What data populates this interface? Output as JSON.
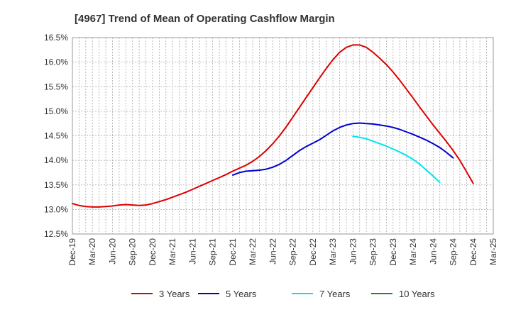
{
  "chart_data": {
    "type": "line",
    "title": "[4967]  Trend of Mean of Operating Cashflow Margin",
    "xlabel": "",
    "ylabel": "",
    "x_ticks": [
      "Dec-19",
      "Mar-20",
      "Jun-20",
      "Sep-20",
      "Dec-20",
      "Mar-21",
      "Jun-21",
      "Sep-21",
      "Dec-21",
      "Mar-22",
      "Jun-22",
      "Sep-22",
      "Dec-22",
      "Mar-23",
      "Jun-23",
      "Sep-23",
      "Dec-23",
      "Mar-24",
      "Jun-24",
      "Sep-24",
      "Dec-24",
      "Mar-25"
    ],
    "y_ticks": [
      "12.5%",
      "13.0%",
      "13.5%",
      "14.0%",
      "14.5%",
      "15.0%",
      "15.5%",
      "16.0%",
      "16.5%"
    ],
    "ylim": [
      12.5,
      16.5
    ],
    "grid": true,
    "legend_position": "bottom",
    "series": [
      {
        "name": "3 Years",
        "color": "#dd0000",
        "points": [
          [
            "Dec-19",
            13.12
          ],
          [
            "Jan-20",
            13.08
          ],
          [
            "Feb-20",
            13.06
          ],
          [
            "Mar-20",
            13.05
          ],
          [
            "Apr-20",
            13.05
          ],
          [
            "May-20",
            13.06
          ],
          [
            "Jun-20",
            13.07
          ],
          [
            "Jul-20",
            13.09
          ],
          [
            "Aug-20",
            13.1
          ],
          [
            "Sep-20",
            13.09
          ],
          [
            "Oct-20",
            13.08
          ],
          [
            "Nov-20",
            13.09
          ],
          [
            "Dec-20",
            13.12
          ],
          [
            "Jan-21",
            13.16
          ],
          [
            "Feb-21",
            13.2
          ],
          [
            "Mar-21",
            13.25
          ],
          [
            "Apr-21",
            13.3
          ],
          [
            "May-21",
            13.35
          ],
          [
            "Jun-21",
            13.41
          ],
          [
            "Jul-21",
            13.47
          ],
          [
            "Aug-21",
            13.53
          ],
          [
            "Sep-21",
            13.59
          ],
          [
            "Oct-21",
            13.65
          ],
          [
            "Nov-21",
            13.71
          ],
          [
            "Dec-21",
            13.78
          ],
          [
            "Jan-22",
            13.84
          ],
          [
            "Feb-22",
            13.9
          ],
          [
            "Mar-22",
            13.98
          ],
          [
            "Apr-22",
            14.08
          ],
          [
            "May-22",
            14.2
          ],
          [
            "Jun-22",
            14.34
          ],
          [
            "Jul-22",
            14.5
          ],
          [
            "Aug-22",
            14.68
          ],
          [
            "Sep-22",
            14.88
          ],
          [
            "Oct-22",
            15.08
          ],
          [
            "Nov-22",
            15.28
          ],
          [
            "Dec-22",
            15.48
          ],
          [
            "Jan-23",
            15.68
          ],
          [
            "Feb-23",
            15.87
          ],
          [
            "Mar-23",
            16.05
          ],
          [
            "Apr-23",
            16.2
          ],
          [
            "May-23",
            16.3
          ],
          [
            "Jun-23",
            16.35
          ],
          [
            "Jul-23",
            16.35
          ],
          [
            "Aug-23",
            16.3
          ],
          [
            "Sep-23",
            16.2
          ],
          [
            "Oct-23",
            16.08
          ],
          [
            "Nov-23",
            15.95
          ],
          [
            "Dec-23",
            15.8
          ],
          [
            "Jan-24",
            15.63
          ],
          [
            "Feb-24",
            15.45
          ],
          [
            "Mar-24",
            15.27
          ],
          [
            "Apr-24",
            15.08
          ],
          [
            "May-24",
            14.9
          ],
          [
            "Jun-24",
            14.72
          ],
          [
            "Jul-24",
            14.55
          ],
          [
            "Aug-24",
            14.38
          ],
          [
            "Sep-24",
            14.2
          ],
          [
            "Oct-24",
            14.0
          ],
          [
            "Nov-24",
            13.77
          ],
          [
            "Dec-24",
            13.53
          ]
        ]
      },
      {
        "name": "5 Years",
        "color": "#0000cc",
        "points": [
          [
            "Dec-21",
            13.7
          ],
          [
            "Jan-22",
            13.75
          ],
          [
            "Feb-22",
            13.78
          ],
          [
            "Mar-22",
            13.79
          ],
          [
            "Apr-22",
            13.8
          ],
          [
            "May-22",
            13.82
          ],
          [
            "Jun-22",
            13.86
          ],
          [
            "Jul-22",
            13.92
          ],
          [
            "Aug-22",
            14.0
          ],
          [
            "Sep-22",
            14.1
          ],
          [
            "Oct-22",
            14.2
          ],
          [
            "Nov-22",
            14.28
          ],
          [
            "Dec-22",
            14.35
          ],
          [
            "Jan-23",
            14.42
          ],
          [
            "Feb-23",
            14.51
          ],
          [
            "Mar-23",
            14.6
          ],
          [
            "Apr-23",
            14.67
          ],
          [
            "May-23",
            14.72
          ],
          [
            "Jun-23",
            14.75
          ],
          [
            "Jul-23",
            14.76
          ],
          [
            "Aug-23",
            14.75
          ],
          [
            "Sep-23",
            14.74
          ],
          [
            "Oct-23",
            14.72
          ],
          [
            "Nov-23",
            14.7
          ],
          [
            "Dec-23",
            14.67
          ],
          [
            "Jan-24",
            14.63
          ],
          [
            "Feb-24",
            14.58
          ],
          [
            "Mar-24",
            14.53
          ],
          [
            "Apr-24",
            14.47
          ],
          [
            "May-24",
            14.41
          ],
          [
            "Jun-24",
            14.34
          ],
          [
            "Jul-24",
            14.26
          ],
          [
            "Aug-24",
            14.16
          ],
          [
            "Sep-24",
            14.05
          ]
        ]
      },
      {
        "name": "7 Years",
        "color": "#00e5ee",
        "points": [
          [
            "Jun-23",
            14.49
          ],
          [
            "Jul-23",
            14.47
          ],
          [
            "Aug-23",
            14.44
          ],
          [
            "Sep-23",
            14.39
          ],
          [
            "Oct-23",
            14.34
          ],
          [
            "Nov-23",
            14.29
          ],
          [
            "Dec-23",
            14.23
          ],
          [
            "Jan-24",
            14.17
          ],
          [
            "Feb-24",
            14.1
          ],
          [
            "Mar-24",
            14.02
          ],
          [
            "Apr-24",
            13.92
          ],
          [
            "May-24",
            13.8
          ],
          [
            "Jun-24",
            13.68
          ],
          [
            "Jul-24",
            13.55
          ]
        ]
      },
      {
        "name": "10 Years",
        "color": "#228b22",
        "points": []
      }
    ]
  }
}
